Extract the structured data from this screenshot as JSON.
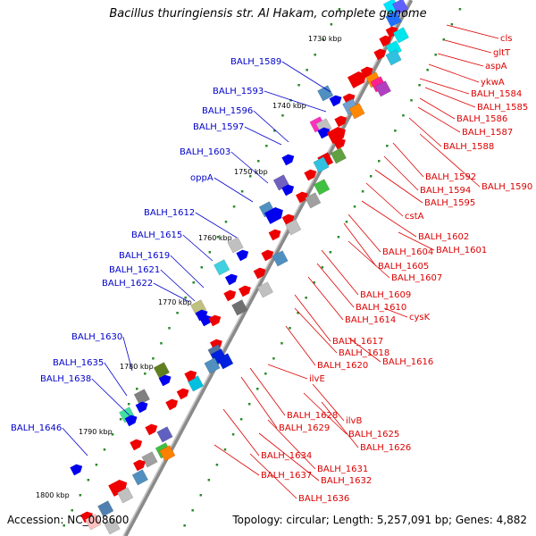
{
  "title": "Bacillus thuringiensis str. Al Hakam, complete genome",
  "footer": {
    "accession": "Accession: NC_008600",
    "topology": "Topology: circular; Length: 5,257,091 bp; Genes: 4,882"
  },
  "kbp_labels": [
    "1730 kbp",
    "1740 kbp",
    "1750 kbp",
    "1760 kbp",
    "1770 kbp",
    "1780 kbp",
    "1790 kbp",
    "1800 kbp"
  ],
  "left_labels": [
    "BALH_1589",
    "BALH_1593",
    "BALH_1596",
    "BALH_1597",
    "BALH_1603",
    "oppA",
    "BALH_1612",
    "BALH_1615",
    "BALH_1619",
    "BALH_1621",
    "BALH_1622",
    "BALH_1630",
    "BALH_1635",
    "BALH_1638",
    "BALH_1646"
  ],
  "right_labels": [
    "cls",
    "gltT",
    "aspA",
    "ykwA",
    "BALH_1584",
    "BALH_1585",
    "BALH_1586",
    "BALH_1587",
    "BALH_1588",
    "BALH_1592",
    "BALH_1590",
    "BALH_1594",
    "BALH_1595",
    "cstA",
    "BALH_1602",
    "BALH_1604",
    "BALH_1601",
    "BALH_1605",
    "BALH_1607",
    "BALH_1609",
    "BALH_1610",
    "cysK",
    "BALH_1614",
    "BALH_1617",
    "BALH_1618",
    "BALH_1616",
    "BALH_1620",
    "ilvE",
    "BALH_1628",
    "ilvB",
    "BALH_1629",
    "BALH_1625",
    "BALH_1626",
    "BALH_1634",
    "BALH_1631",
    "BALH_1632",
    "BALH_1637",
    "BALH_1636"
  ],
  "colors": {
    "left_label": "#0000cc",
    "right_label": "#dd0000",
    "backbone": "#888888",
    "tick": "#2a8a2a",
    "forward_gene": "#0000ee",
    "reverse_gene": "#ee0000"
  }
}
